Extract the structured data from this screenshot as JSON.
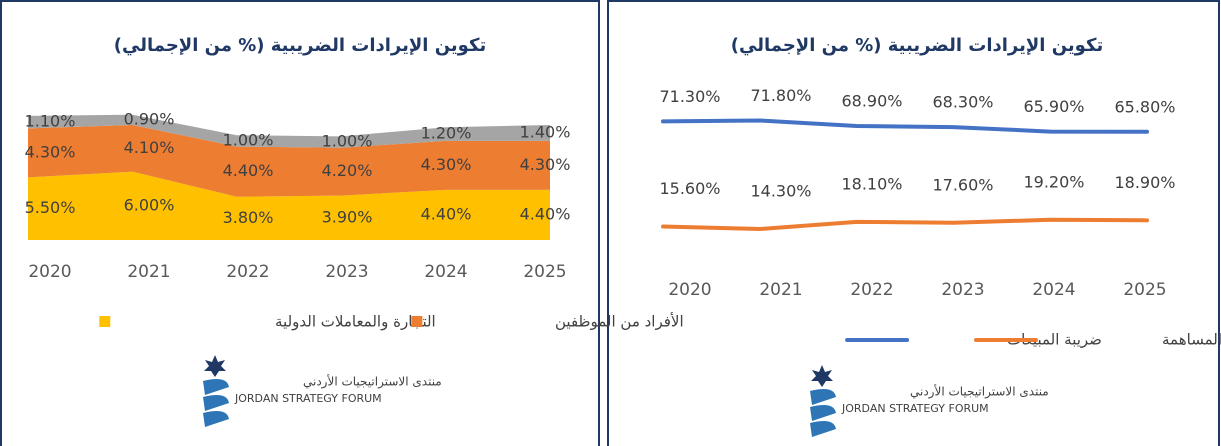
{
  "chart_data": [
    {
      "type": "stacked_area",
      "title": "تكوين الإيرادات الضريبية (% من الإجمالي)",
      "categories": [
        "2020",
        "2021",
        "2022",
        "2023",
        "2024",
        "2025"
      ],
      "ylim": [
        0,
        11.5
      ],
      "series": [
        {
          "name": "التجارة والمعاملات الدولية",
          "color": "#ffc000",
          "values": [
            5.5,
            6.0,
            3.8,
            3.9,
            4.4,
            4.4
          ],
          "value_labels": [
            "5.50%",
            "6.00%",
            "3.80%",
            "3.90%",
            "4.40%",
            "4.40%"
          ]
        },
        {
          "name": "الأفراد من الموظفين",
          "color": "#ed7d31",
          "values": [
            4.3,
            4.1,
            4.4,
            4.2,
            4.3,
            4.3
          ],
          "value_labels": [
            "4.30%",
            "4.10%",
            "4.40%",
            "4.20%",
            "4.30%",
            "4.30%"
          ]
        },
        {
          "color": "#a5a5a5",
          "values": [
            1.1,
            0.9,
            1.0,
            1.0,
            1.2,
            1.4
          ],
          "value_labels": [
            "1.10%",
            "0.90%",
            "1.00%",
            "1.00%",
            "1.20%",
            "1.40%"
          ]
        }
      ]
    },
    {
      "type": "line",
      "title": "تكوين الإيرادات الضريبية (% من الإجمالي)",
      "categories": [
        "2020",
        "2021",
        "2022",
        "2023",
        "2024",
        "2025"
      ],
      "ylim": [
        0,
        80
      ],
      "series": [
        {
          "name": "ضريبة المبيعات",
          "color": "#4472c4",
          "values": [
            71.3,
            71.8,
            68.9,
            68.3,
            65.9,
            65.8
          ],
          "value_labels": [
            "71.30%",
            "71.80%",
            "68.90%",
            "68.30%",
            "65.90%",
            "65.80%"
          ]
        },
        {
          "name": "الشركات المساهمة",
          "color": "#ed7d31",
          "values": [
            15.6,
            14.3,
            18.1,
            17.6,
            19.2,
            18.9
          ],
          "value_labels": [
            "15.60%",
            "14.30%",
            "18.10%",
            "17.60%",
            "19.20%",
            "18.90%"
          ]
        }
      ]
    }
  ],
  "logo": {
    "arabic": "منتدى الاستراتيجيات الأردني",
    "english": "JORDAN STRATEGY FORUM"
  }
}
